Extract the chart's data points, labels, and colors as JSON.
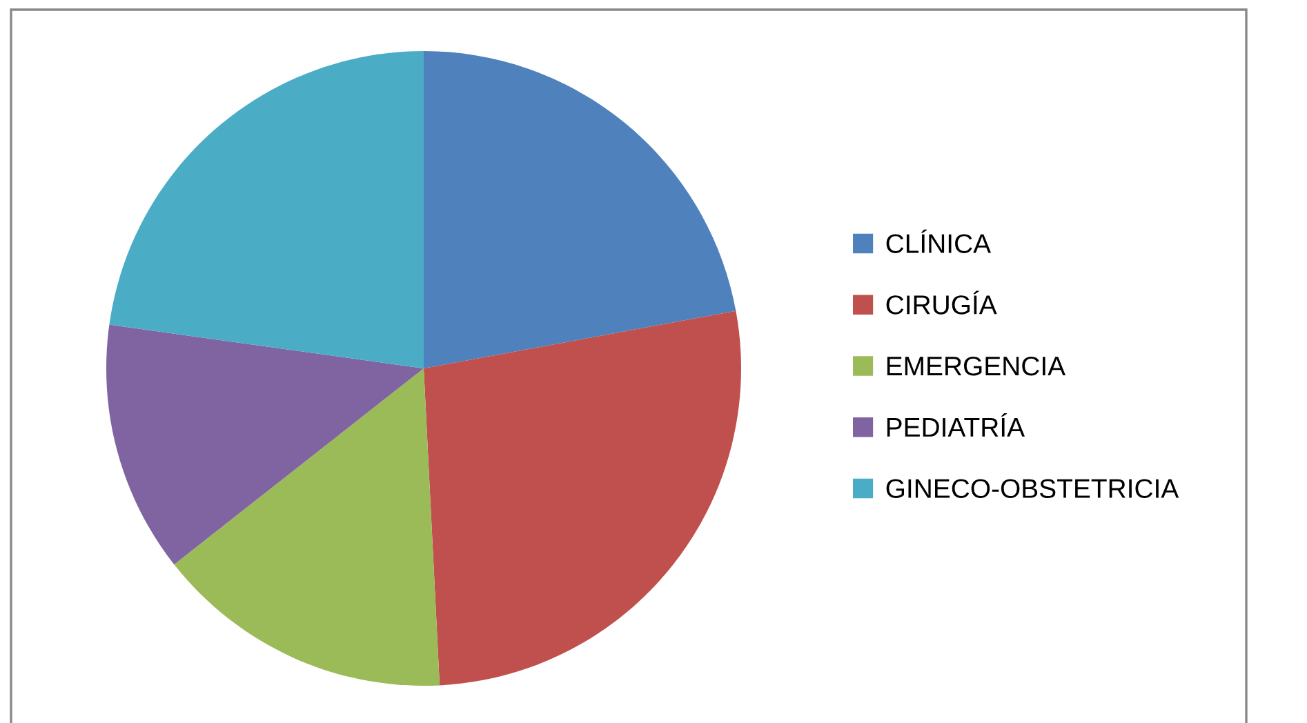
{
  "chart_data": {
    "type": "pie",
    "categories": [
      "CLÍNICA",
      "CIRUGÍA",
      "EMERGENCIA",
      "PEDIATRÍA",
      "GINECO-OBSTETRICIA"
    ],
    "values": [
      22.1,
      27.1,
      15.2,
      12.8,
      22.8
    ],
    "colors": [
      "#4f81bd",
      "#c0504d",
      "#9bbb59",
      "#8064a2",
      "#4bacc6"
    ],
    "legend": "right"
  }
}
